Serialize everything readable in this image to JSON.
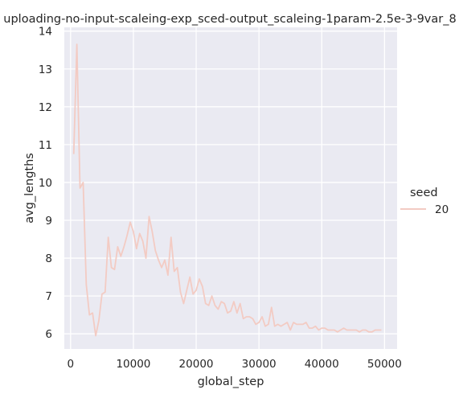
{
  "chart_data": {
    "type": "line",
    "title": "uploading-no-input-scaleing-exp_sced-output_scaleing-1param-2.5e-3-9var_8",
    "xlabel": "global_step",
    "ylabel": "avg_lengths",
    "xlim": [
      -1000,
      52000
    ],
    "ylim": [
      5.6,
      14.1
    ],
    "xticks": [
      0,
      10000,
      20000,
      30000,
      40000,
      50000
    ],
    "xtick_labels": [
      "0",
      "10000",
      "20000",
      "30000",
      "40000",
      "50000"
    ],
    "yticks": [
      6,
      7,
      8,
      9,
      10,
      11,
      12,
      13,
      14
    ],
    "ytick_labels": [
      "6",
      "7",
      "8",
      "9",
      "10",
      "11",
      "12",
      "13",
      "14"
    ],
    "grid": true,
    "legend": {
      "title": "seed",
      "placement": "right",
      "entries": [
        "20"
      ]
    },
    "series": [
      {
        "name": "20",
        "color": "#f3cbc3",
        "x": [
          500,
          1000,
          1500,
          2000,
          2500,
          3000,
          3500,
          4000,
          4500,
          5000,
          5500,
          6000,
          6500,
          7000,
          7500,
          8000,
          8500,
          9000,
          9500,
          10000,
          10500,
          11000,
          11500,
          12000,
          12500,
          13000,
          13500,
          14000,
          14500,
          15000,
          15500,
          16000,
          16500,
          17000,
          17500,
          18000,
          18500,
          19000,
          19500,
          20000,
          20500,
          21000,
          21500,
          22000,
          22500,
          23000,
          23500,
          24000,
          24500,
          25000,
          25500,
          26000,
          26500,
          27000,
          27500,
          28000,
          28500,
          29000,
          29500,
          30000,
          30500,
          31000,
          31500,
          32000,
          32500,
          33000,
          33500,
          34000,
          34500,
          35000,
          35500,
          36000,
          36500,
          37000,
          37500,
          38000,
          38500,
          39000,
          39500,
          40000,
          40500,
          41000,
          41500,
          42000,
          42500,
          43000,
          43500,
          44000,
          44500,
          45000,
          45500,
          46000,
          46500,
          47000,
          47500,
          48000,
          48500,
          49000,
          49500
        ],
        "y": [
          10.75,
          13.65,
          9.85,
          10.0,
          7.3,
          6.5,
          6.55,
          5.95,
          6.35,
          7.05,
          7.1,
          8.55,
          7.75,
          7.7,
          8.3,
          8.05,
          8.3,
          8.6,
          8.95,
          8.7,
          8.25,
          8.65,
          8.45,
          8.0,
          9.1,
          8.7,
          8.2,
          7.95,
          7.75,
          7.95,
          7.55,
          8.55,
          7.65,
          7.75,
          7.1,
          6.8,
          7.15,
          7.5,
          7.05,
          7.15,
          7.45,
          7.25,
          6.8,
          6.75,
          7.0,
          6.75,
          6.65,
          6.85,
          6.8,
          6.55,
          6.6,
          6.85,
          6.55,
          6.8,
          6.4,
          6.45,
          6.45,
          6.4,
          6.25,
          6.3,
          6.45,
          6.2,
          6.25,
          6.7,
          6.2,
          6.25,
          6.2,
          6.25,
          6.3,
          6.1,
          6.3,
          6.25,
          6.25,
          6.25,
          6.3,
          6.15,
          6.15,
          6.2,
          6.1,
          6.15,
          6.15,
          6.1,
          6.1,
          6.1,
          6.05,
          6.1,
          6.15,
          6.1,
          6.1,
          6.1,
          6.1,
          6.05,
          6.1,
          6.1,
          6.05,
          6.05,
          6.1,
          6.1,
          6.1
        ]
      }
    ]
  },
  "style": {
    "plot_background": "#eaeaf2",
    "grid_color": "#ffffff",
    "text_color": "#262626"
  }
}
